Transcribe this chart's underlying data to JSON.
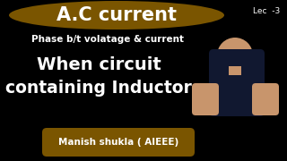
{
  "bg_color": "#000000",
  "title_text": "A.C current",
  "title_ellipse_color": "#7A5500",
  "title_text_color": "#FFFFFF",
  "subtitle_text": "Phase b/t volatage & current",
  "subtitle_color": "#FFFFFF",
  "main_line1": "When circuit",
  "main_line2": "containing Inductor",
  "main_text_color": "#FFFFFF",
  "lec_text": "Lec  -3",
  "lec_color": "#FFFFFF",
  "footer_text": "Manish shukla ( AIEEE)",
  "footer_bg": "#7A5500",
  "footer_text_color": "#FFFFFF",
  "person_color": "#1a1a2e",
  "fig_width": 3.2,
  "fig_height": 1.8,
  "dpi": 100
}
